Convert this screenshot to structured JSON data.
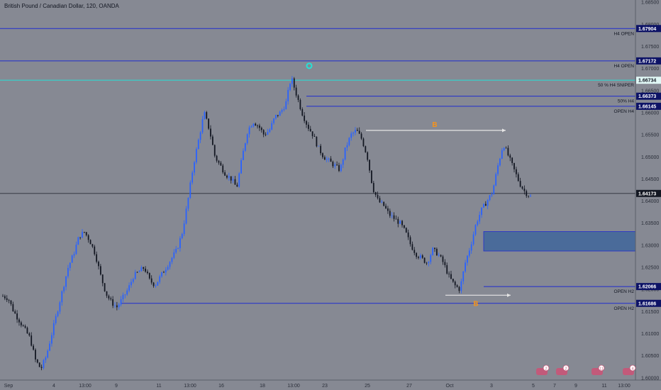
{
  "header": {
    "symbol_title": "British Pound / Canadian Dollar, 120, OANDA"
  },
  "colors": {
    "background": "#868993",
    "level_line": "#1f2ccf",
    "sniper_line": "#26e0d6",
    "candle_up": "#2962ff",
    "candle_down": "#131722",
    "zone_fill": "#4a6b9a",
    "b_label": "#f7931a",
    "price_tag_bg": "#0d1366"
  },
  "chart_data": {
    "type": "candlestick",
    "ylim": [
      1.5995,
      1.6855
    ],
    "y_ticks": [
      "1.68500",
      "1.68000",
      "1.67500",
      "1.67000",
      "1.66500",
      "1.66000",
      "1.65500",
      "1.65000",
      "1.64500",
      "1.64000",
      "1.63500",
      "1.63000",
      "1.62500",
      "1.62000",
      "1.61500",
      "1.61000",
      "1.60500",
      "1.60000"
    ],
    "x_ticks": [
      "Sep",
      "4",
      "13:00",
      "9",
      "11",
      "13:00",
      "16",
      "18",
      "13:00",
      "23",
      "25",
      "27",
      "Oct",
      "3",
      "5",
      "7",
      "9",
      "11",
      "13:00"
    ],
    "current_price": "1.64173",
    "levels": [
      {
        "price": 1.67904,
        "label": "H4 OPEN",
        "tag": "1.67904",
        "color": "#1f2ccf"
      },
      {
        "price": 1.67172,
        "label": "H4 OPEN",
        "tag": "1.67172",
        "color": "#1f2ccf"
      },
      {
        "price": 1.66734,
        "label": "50 % H4 SNIPER",
        "tag": "1.66734",
        "color": "#26e0d6"
      },
      {
        "price": 1.66373,
        "label": "50% H4",
        "tag": "1.66373",
        "color": "#1f2ccf"
      },
      {
        "price": 1.66145,
        "label": "OPEN H4",
        "tag": "1.66145",
        "color": "#1f2ccf"
      },
      {
        "price": 1.62066,
        "label": "OPEN H2",
        "tag": "1.62066",
        "color": "#1f2ccf"
      },
      {
        "price": 1.61686,
        "label": "OPEN H2",
        "tag": "1.61686",
        "color": "#1f2ccf"
      }
    ],
    "zone": {
      "from": 1.6287,
      "to": 1.6331
    },
    "b_labels": [
      "B",
      "B"
    ],
    "path": [
      1.6185,
      1.618,
      1.615,
      1.613,
      1.611,
      1.609,
      1.604,
      1.602,
      1.605,
      1.61,
      1.615,
      1.62,
      1.625,
      1.628,
      1.632,
      1.633,
      1.631,
      1.628,
      1.623,
      1.619,
      1.617,
      1.616,
      1.618,
      1.62,
      1.623,
      1.624,
      1.625,
      1.622,
      1.621,
      1.623,
      1.625,
      1.627,
      1.629,
      1.633,
      1.64,
      1.648,
      1.654,
      1.66,
      1.656,
      1.65,
      1.648,
      1.646,
      1.645,
      1.643,
      1.65,
      1.656,
      1.658,
      1.657,
      1.655,
      1.656,
      1.659,
      1.66,
      1.662,
      1.668,
      1.664,
      1.66,
      1.657,
      1.655,
      1.652,
      1.65,
      1.649,
      1.648,
      1.647,
      1.652,
      1.655,
      1.656,
      1.654,
      1.65,
      1.643,
      1.64,
      1.639,
      1.637,
      1.636,
      1.635,
      1.633,
      1.63,
      1.628,
      1.627,
      1.626,
      1.629,
      1.628,
      1.626,
      1.623,
      1.621,
      1.62,
      1.626,
      1.63,
      1.635,
      1.638,
      1.64,
      1.642,
      1.648,
      1.653,
      1.65,
      1.647,
      1.644,
      1.642,
      1.641
    ]
  },
  "toolbar": {
    "badges": [
      "2",
      "2",
      "11",
      "4"
    ]
  }
}
